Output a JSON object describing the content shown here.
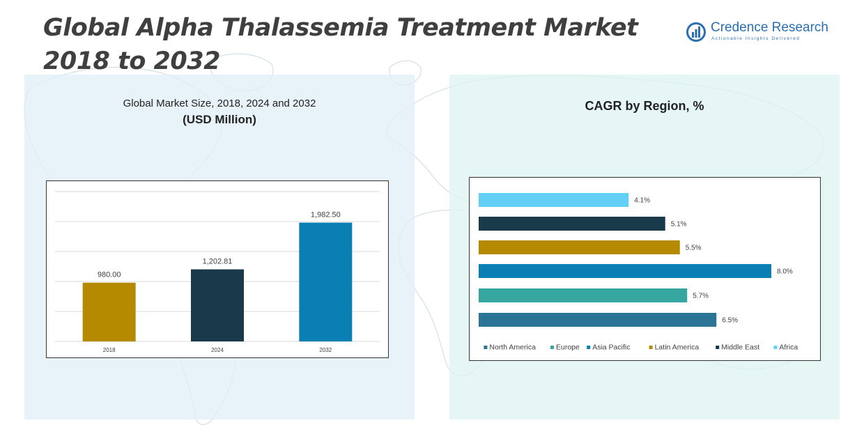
{
  "page": {
    "title_line1": "Global Alpha Thalassemia Treatment Market",
    "title_line2": "2018 to 2032"
  },
  "logo": {
    "name": "Credence Research",
    "tagline": "Actionable Insights Delivered"
  },
  "left_panel": {
    "subtitle_line1": "Global Market Size, 2018, 2024 and 2032",
    "subtitle_line2": "(USD Million)"
  },
  "right_panel": {
    "subtitle": "CAGR by Region, %"
  },
  "colors": {
    "mustard": "#b68a00",
    "navy": "#183a4a",
    "blue": "#0a7fb4",
    "sky": "#62d0f5",
    "teal": "#35a7a0",
    "steel": "#2b7495"
  },
  "chart_data": [
    {
      "type": "bar",
      "categories": [
        "2018",
        "2024",
        "2032"
      ],
      "values": [
        980.0,
        1202.81,
        1982.5
      ],
      "value_labels": [
        "980.00",
        "1,202.81",
        "1,982.50"
      ],
      "colors": [
        "#b68a00",
        "#183a4a",
        "#0a7fb4"
      ],
      "ylim": [
        0,
        2500
      ],
      "grid": true,
      "title": "",
      "xlabel": "",
      "ylabel": ""
    },
    {
      "type": "bar",
      "orientation": "horizontal",
      "series": [
        {
          "name": "North America",
          "value": 6.5,
          "label": "6.5%",
          "color": "#2b7495"
        },
        {
          "name": "Europe",
          "value": 5.7,
          "label": "5.7%",
          "color": "#35a7a0"
        },
        {
          "name": "Asia Pacific",
          "value": 8.0,
          "label": "8.0%",
          "color": "#0a7fb4"
        },
        {
          "name": "Latin America",
          "value": 5.5,
          "label": "5.5%",
          "color": "#b68a00"
        },
        {
          "name": "Middle East",
          "value": 5.1,
          "label": "5.1%",
          "color": "#183a4a"
        },
        {
          "name": "Africa",
          "value": 4.1,
          "label": "4.1%",
          "color": "#62d0f5"
        }
      ],
      "xlim": [
        0,
        8.25
      ],
      "grid": false,
      "legend": "bottom",
      "title": "",
      "xlabel": "",
      "ylabel": ""
    }
  ]
}
